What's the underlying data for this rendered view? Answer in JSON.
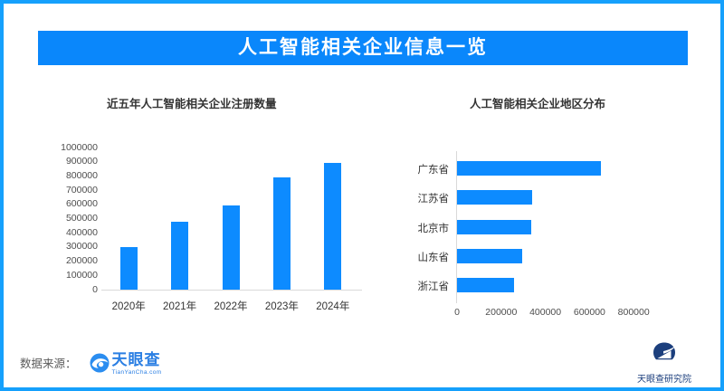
{
  "header": {
    "title": "人工智能相关企业信息一览"
  },
  "chart_data": [
    {
      "type": "bar",
      "orientation": "vertical",
      "title": "近五年人工智能相关企业注册数量",
      "categories": [
        "2020年",
        "2021年",
        "2022年",
        "2023年",
        "2024年"
      ],
      "values": [
        300000,
        480000,
        590000,
        790000,
        890000
      ],
      "ylim": [
        0,
        1000000
      ],
      "ytick_step": 100000,
      "ytick_labels": [
        "0",
        "100000",
        "200000",
        "300000",
        "400000",
        "500000",
        "600000",
        "700000",
        "800000",
        "900000",
        "1000000"
      ],
      "grid": false,
      "legend": "none",
      "bar_color": "#0D8BFF"
    },
    {
      "type": "bar",
      "orientation": "horizontal",
      "title": "人工智能相关企业地区分布",
      "categories": [
        "广东省",
        "江苏省",
        "北京市",
        "山东省",
        "浙江省"
      ],
      "values": [
        650000,
        340000,
        335000,
        295000,
        260000
      ],
      "xlim": [
        0,
        800000
      ],
      "xtick_step": 200000,
      "xtick_labels": [
        "0",
        "200000",
        "400000",
        "600000",
        "800000"
      ],
      "grid": false,
      "legend": "none",
      "bar_color": "#0D8BFF"
    }
  ],
  "footer": {
    "source_label": "数据来源：",
    "tianyancha_logo_text": "天眼查",
    "tianyancha_logo_subtext": "TianYanCha.com",
    "research_logo_text": "天眼查研究院"
  },
  "icons": {
    "tianyancha": "tianyancha-eye-icon",
    "research": "research-institute-eye-icon"
  },
  "colors": {
    "accent": "#0A87FB",
    "bar": "#0D8BFF",
    "border": "#15A0FC",
    "tianyancha_blue": "#2B7FE3",
    "research_navy": "#1C3F7D",
    "axis_line": "#D9D9D9",
    "tick_text": "#4D4D4D"
  }
}
